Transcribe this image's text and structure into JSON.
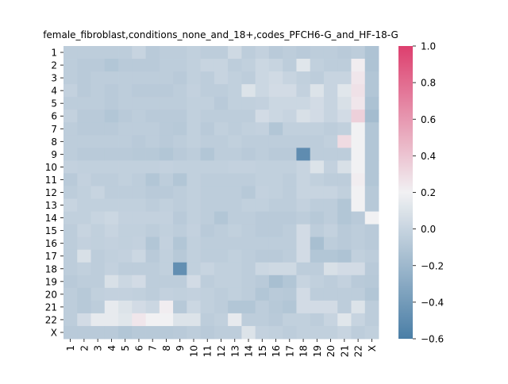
{
  "chart_data": {
    "type": "heatmap",
    "title": "female_fibroblast,conditions_none_and_18+,codes_PFCH6-G_and_HF-18-G",
    "xlabel": "",
    "ylabel": "",
    "rows": [
      "1",
      "2",
      "3",
      "4",
      "5",
      "6",
      "7",
      "8",
      "9",
      "10",
      "11",
      "12",
      "13",
      "14",
      "15",
      "16",
      "17",
      "18",
      "19",
      "20",
      "21",
      "22",
      "X"
    ],
    "cols": [
      "1",
      "2",
      "3",
      "4",
      "5",
      "6",
      "7",
      "8",
      "9",
      "10",
      "11",
      "12",
      "13",
      "14",
      "15",
      "16",
      "17",
      "18",
      "19",
      "20",
      "21",
      "22",
      "X"
    ],
    "vmin": -0.6,
    "vmax": 1.0,
    "colorbar_ticks": [
      "1.0",
      "0.8",
      "0.6",
      "0.4",
      "0.2",
      "0.0",
      "−0.2",
      "−0.4",
      "−0.6"
    ],
    "colormap": {
      "low": "#4a7ea6",
      "center": "#f1f1f3",
      "high": "#dd3f6e",
      "center_value": 0.2
    },
    "values": [
      [
        -0.05,
        -0.05,
        -0.05,
        -0.05,
        -0.05,
        0.0,
        -0.07,
        -0.05,
        -0.05,
        -0.03,
        -0.05,
        -0.05,
        0.03,
        -0.05,
        -0.02,
        -0.07,
        -0.05,
        -0.07,
        -0.05,
        -0.05,
        -0.07,
        -0.05,
        -0.12
      ],
      [
        -0.05,
        -0.07,
        -0.07,
        -0.1,
        -0.07,
        -0.07,
        -0.07,
        -0.05,
        -0.05,
        -0.03,
        0.0,
        0.0,
        -0.05,
        -0.03,
        0.02,
        0.0,
        -0.05,
        0.12,
        -0.03,
        -0.05,
        -0.05,
        0.22,
        -0.12
      ],
      [
        -0.05,
        -0.07,
        -0.05,
        -0.05,
        -0.05,
        -0.05,
        -0.05,
        -0.05,
        -0.07,
        -0.03,
        -0.05,
        0.0,
        -0.03,
        -0.05,
        0.02,
        0.04,
        0.0,
        -0.03,
        -0.05,
        0.0,
        0.0,
        0.25,
        -0.1
      ],
      [
        -0.02,
        -0.07,
        -0.05,
        -0.07,
        -0.05,
        -0.07,
        -0.07,
        -0.07,
        -0.05,
        -0.02,
        -0.05,
        -0.05,
        -0.03,
        0.1,
        0.02,
        0.05,
        0.05,
        -0.02,
        0.1,
        0.0,
        0.12,
        0.27,
        -0.1
      ],
      [
        -0.05,
        -0.05,
        -0.05,
        -0.07,
        -0.05,
        -0.05,
        -0.05,
        -0.05,
        -0.05,
        -0.03,
        -0.03,
        -0.07,
        -0.03,
        -0.03,
        -0.02,
        0.02,
        0.02,
        0.02,
        0.05,
        0.0,
        0.08,
        0.25,
        -0.13
      ],
      [
        -0.02,
        -0.07,
        -0.07,
        -0.1,
        -0.07,
        -0.05,
        -0.07,
        -0.07,
        -0.07,
        -0.03,
        -0.05,
        -0.05,
        -0.05,
        -0.05,
        0.05,
        0.02,
        0.0,
        0.08,
        0.05,
        0.0,
        0.05,
        0.35,
        -0.17
      ],
      [
        -0.05,
        -0.07,
        -0.07,
        -0.07,
        -0.05,
        -0.05,
        -0.05,
        -0.07,
        -0.08,
        -0.03,
        -0.07,
        -0.03,
        -0.05,
        -0.03,
        -0.02,
        -0.1,
        -0.03,
        -0.03,
        -0.03,
        -0.05,
        -0.03,
        0.2,
        -0.1
      ],
      [
        -0.05,
        -0.05,
        -0.05,
        -0.05,
        -0.05,
        -0.07,
        -0.05,
        -0.07,
        -0.05,
        -0.03,
        -0.05,
        -0.05,
        -0.03,
        -0.05,
        -0.05,
        -0.05,
        -0.05,
        -0.05,
        -0.05,
        -0.03,
        0.3,
        0.2,
        -0.1
      ],
      [
        -0.05,
        -0.07,
        -0.07,
        -0.07,
        -0.07,
        -0.08,
        -0.08,
        -0.1,
        -0.07,
        -0.05,
        -0.1,
        -0.05,
        -0.05,
        -0.07,
        -0.05,
        -0.07,
        -0.07,
        -0.5,
        -0.05,
        -0.05,
        -0.05,
        0.2,
        -0.1
      ],
      [
        -0.02,
        -0.03,
        -0.03,
        -0.03,
        -0.03,
        -0.03,
        -0.03,
        -0.02,
        -0.03,
        -0.03,
        -0.03,
        -0.03,
        -0.02,
        -0.02,
        -0.03,
        -0.03,
        -0.03,
        0.0,
        0.1,
        -0.02,
        0.08,
        0.2,
        -0.1
      ],
      [
        -0.07,
        -0.02,
        -0.05,
        -0.05,
        -0.03,
        -0.05,
        -0.1,
        -0.05,
        -0.1,
        -0.03,
        -0.05,
        -0.05,
        -0.05,
        -0.05,
        -0.03,
        -0.03,
        -0.05,
        0.0,
        -0.03,
        -0.05,
        -0.05,
        0.22,
        -0.1
      ],
      [
        -0.05,
        -0.03,
        0.0,
        -0.05,
        -0.05,
        -0.05,
        -0.07,
        -0.07,
        -0.05,
        -0.03,
        -0.05,
        -0.05,
        -0.05,
        -0.08,
        -0.02,
        -0.03,
        -0.05,
        0.0,
        0.0,
        0.0,
        -0.03,
        0.2,
        -0.08
      ],
      [
        0.0,
        -0.03,
        -0.03,
        -0.03,
        -0.03,
        -0.03,
        -0.05,
        -0.03,
        -0.05,
        -0.03,
        -0.05,
        -0.05,
        -0.05,
        -0.03,
        -0.03,
        -0.05,
        -0.05,
        -0.02,
        -0.05,
        -0.05,
        -0.1,
        0.2,
        -0.08
      ],
      [
        -0.03,
        -0.03,
        0.0,
        0.02,
        -0.02,
        -0.02,
        -0.02,
        -0.02,
        -0.07,
        -0.03,
        -0.05,
        -0.1,
        -0.05,
        -0.05,
        -0.07,
        -0.07,
        -0.07,
        -0.05,
        -0.08,
        -0.05,
        -0.1,
        -0.07,
        0.2
      ],
      [
        -0.05,
        0.0,
        -0.03,
        0.0,
        -0.03,
        -0.03,
        -0.05,
        -0.03,
        -0.05,
        -0.02,
        -0.07,
        -0.05,
        -0.03,
        -0.05,
        -0.07,
        -0.07,
        -0.05,
        0.05,
        -0.05,
        -0.02,
        -0.07,
        -0.05,
        -0.07
      ],
      [
        -0.05,
        -0.02,
        -0.03,
        -0.02,
        -0.03,
        -0.02,
        -0.1,
        -0.02,
        -0.1,
        -0.03,
        -0.05,
        -0.05,
        -0.05,
        -0.05,
        -0.05,
        -0.05,
        -0.05,
        0.05,
        -0.15,
        -0.05,
        -0.07,
        -0.05,
        -0.07
      ],
      [
        -0.05,
        0.08,
        -0.05,
        -0.03,
        -0.02,
        0.02,
        -0.07,
        -0.03,
        -0.08,
        -0.03,
        -0.05,
        -0.05,
        -0.03,
        -0.05,
        -0.07,
        -0.07,
        -0.05,
        0.05,
        -0.1,
        -0.1,
        -0.12,
        -0.03,
        -0.05
      ],
      [
        -0.05,
        -0.03,
        -0.05,
        -0.02,
        -0.05,
        -0.05,
        -0.05,
        -0.03,
        -0.48,
        -0.03,
        0.0,
        -0.03,
        -0.03,
        -0.05,
        0.02,
        0.03,
        0.03,
        -0.05,
        -0.05,
        0.08,
        0.05,
        0.05,
        -0.07
      ],
      [
        -0.07,
        -0.05,
        -0.05,
        0.08,
        0.02,
        0.05,
        -0.05,
        -0.05,
        -0.05,
        0.05,
        -0.05,
        -0.03,
        -0.03,
        -0.05,
        -0.07,
        -0.15,
        -0.1,
        0.0,
        -0.03,
        -0.05,
        -0.02,
        -0.07,
        -0.08
      ],
      [
        -0.05,
        -0.08,
        -0.03,
        -0.02,
        -0.02,
        -0.03,
        -0.05,
        -0.02,
        -0.03,
        -0.02,
        -0.03,
        -0.05,
        -0.03,
        -0.05,
        -0.1,
        -0.07,
        -0.08,
        0.05,
        -0.05,
        -0.05,
        -0.05,
        -0.05,
        -0.1
      ],
      [
        -0.05,
        -0.08,
        -0.05,
        0.15,
        0.1,
        0.05,
        0.02,
        0.22,
        -0.08,
        0.02,
        -0.03,
        -0.05,
        -0.1,
        -0.1,
        -0.05,
        -0.08,
        -0.1,
        0.05,
        0.05,
        0.05,
        -0.05,
        0.1,
        -0.05
      ],
      [
        -0.05,
        0.05,
        0.15,
        0.15,
        0.12,
        0.25,
        0.2,
        0.2,
        0.1,
        0.1,
        -0.05,
        -0.03,
        0.15,
        -0.05,
        -0.05,
        -0.07,
        -0.03,
        -0.03,
        -0.05,
        0.0,
        0.12,
        0.0,
        -0.05
      ],
      [
        -0.07,
        -0.07,
        -0.07,
        -0.07,
        -0.1,
        -0.08,
        -0.08,
        -0.08,
        -0.07,
        -0.05,
        -0.07,
        -0.05,
        -0.05,
        0.1,
        -0.02,
        -0.03,
        -0.05,
        -0.03,
        -0.03,
        -0.03,
        0.0,
        -0.05,
        -0.03
      ]
    ]
  }
}
